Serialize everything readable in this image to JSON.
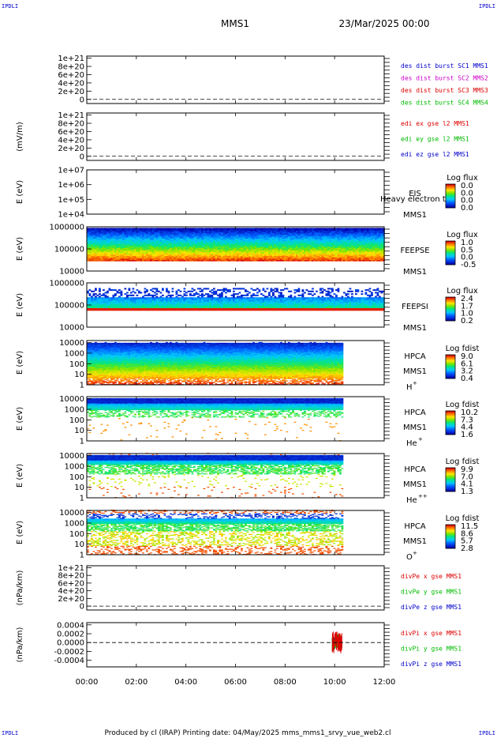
{
  "header": {
    "spacecraft": "MMS1",
    "date": "23/Mar/2025 00:00",
    "corner_tl": "IPDLI",
    "corner_tr": "IPDLI",
    "corner_bl": "IPDLI",
    "corner_br": "IPDLI"
  },
  "footer": {
    "text": "Produced by cl (IRAP)   Printing date: 04/May/2025   mms_mms1_srvy_vue_web2.cl"
  },
  "colors": {
    "red": "#dd0000",
    "green": "#00bb00",
    "blue": "#0000cc",
    "magenta": "#cc00cc",
    "frame": "#000000"
  },
  "chart_data": {
    "type": "multi-panel time series / spectrogram",
    "x_axis": {
      "ticks": [
        "00:00",
        "02:00",
        "04:00",
        "06:00",
        "08:00",
        "10:00",
        "12:00"
      ],
      "range_hours": [
        0,
        12
      ]
    },
    "panels": [
      {
        "id": "des-dist",
        "kind": "line",
        "ylabel": "",
        "yticks": [
          "1e+21",
          "8e+20",
          "6e+20",
          "4e+20",
          "2e+20",
          "0"
        ],
        "ytick_values": [
          1e+21,
          8e+20,
          6e+20,
          4e+20,
          2e+20,
          0
        ],
        "ylim": [
          -1e+20,
          1.05e+21
        ],
        "zero_line": true,
        "legend": [
          {
            "text": "des dist burst SC1 MMS1",
            "color": "blue"
          },
          {
            "text": "des dist burst SC2 MMS2",
            "color": "magenta"
          },
          {
            "text": "des dist burst SC3 MMS3",
            "color": "red"
          },
          {
            "text": "des dist burst SC4 MMS4",
            "color": "green"
          }
        ]
      },
      {
        "id": "edi",
        "kind": "line",
        "ylabel": "(mV/m)",
        "yticks": [
          "1e+21",
          "8e+20",
          "6e+20",
          "4e+20",
          "2e+20",
          "0"
        ],
        "ytick_values": [
          1e+21,
          8e+20,
          6e+20,
          4e+20,
          2e+20,
          0
        ],
        "ylim": [
          -1e+20,
          1.05e+21
        ],
        "zero_line": true,
        "legend": [
          {
            "text": "edi ex gse l2 MMS1",
            "color": "red"
          },
          {
            "text": "edi ey gse l2 MMS1",
            "color": "green"
          },
          {
            "text": "edi ez gse l2 MMS1",
            "color": "blue"
          }
        ]
      },
      {
        "id": "eis",
        "kind": "spectrogram",
        "ylabel": "E (eV)",
        "yticks": [
          "1e+07",
          "1e+06",
          "1e+05",
          "1e+04"
        ],
        "ytick_values": [
          10000000.0,
          1000000.0,
          100000.0,
          10000.0
        ],
        "ylog": [
          4,
          7
        ],
        "instrument": [
          "EIS",
          "MMS1"
        ],
        "overlay": "Heavy electron to",
        "colorbar": {
          "title": "Log flux",
          "ticks": [
            "0.0",
            "0.0",
            "0.0",
            "0.0"
          ]
        },
        "data_end_hours": 0
      },
      {
        "id": "feepse",
        "kind": "spectrogram",
        "ylabel": "E (eV)",
        "yticks": [
          "1000000",
          "100000",
          "10000"
        ],
        "ytick_values": [
          1000000.0,
          100000.0,
          10000.0
        ],
        "ylog": [
          4,
          6
        ],
        "instrument": [
          "FEEPSE",
          "MMS1"
        ],
        "colorbar": {
          "title": "Log flux",
          "ticks": [
            "1.0",
            "0.5",
            "0.0",
            "-0.5"
          ]
        },
        "data_end_hours": 12,
        "band_log": [
          4.45,
          5.92
        ],
        "style": "gradient_high_blue"
      },
      {
        "id": "feepsi",
        "kind": "spectrogram",
        "ylabel": "E (eV)",
        "yticks": [
          "1000000",
          "100000",
          "10000"
        ],
        "ytick_values": [
          1000000.0,
          100000.0,
          10000.0
        ],
        "ylog": [
          4,
          6
        ],
        "instrument": [
          "FEEPSI",
          "MMS1"
        ],
        "colorbar": {
          "title": "Log flux",
          "ticks": [
            "2.4",
            "1.7",
            "1.0",
            "0.2"
          ]
        },
        "data_end_hours": 12,
        "band_log": [
          4.75,
          5.3
        ],
        "style": "low_red_sparse_blue"
      },
      {
        "id": "hpca-h",
        "kind": "spectrogram",
        "ylabel": "E (eV)",
        "yticks": [
          "10000",
          "1000",
          "100",
          "10",
          "1"
        ],
        "ytick_values": [
          10000.0,
          1000.0,
          100.0,
          10,
          1
        ],
        "ylog": [
          0,
          4.2
        ],
        "instrument": [
          "HPCA",
          "MMS1"
        ],
        "species": "H",
        "species_sup": "+",
        "colorbar": {
          "title": "Log fdist",
          "ticks": [
            "9.0",
            "6.1",
            "3.2",
            "0.4"
          ]
        },
        "data_end_hours": 10.3,
        "style": "hpca_h"
      },
      {
        "id": "hpca-he",
        "kind": "spectrogram",
        "ylabel": "E (eV)",
        "yticks": [
          "10000",
          "1000",
          "100",
          "10",
          "1"
        ],
        "ytick_values": [
          10000.0,
          1000.0,
          100.0,
          10,
          1
        ],
        "ylog": [
          0,
          4.2
        ],
        "instrument": [
          "HPCA",
          "MMS1"
        ],
        "species": "He",
        "species_sup": "+",
        "colorbar": {
          "title": "Log fdist",
          "ticks": [
            "10.2",
            "7.3",
            "4.4",
            "1.6"
          ]
        },
        "data_end_hours": 10.3,
        "style": "hpca_he"
      },
      {
        "id": "hpca-hepp",
        "kind": "spectrogram",
        "ylabel": "E (eV)",
        "yticks": [
          "10000",
          "1000",
          "100",
          "10",
          "1"
        ],
        "ytick_values": [
          10000.0,
          1000.0,
          100.0,
          10,
          1
        ],
        "ylog": [
          0,
          4.2
        ],
        "instrument": [
          "HPCA",
          "MMS1"
        ],
        "species": "He",
        "species_sup": "++",
        "colorbar": {
          "title": "Log fdist",
          "ticks": [
            "9.9",
            "7.0",
            "4.1",
            "1.3"
          ]
        },
        "data_end_hours": 10.3,
        "style": "hpca_hepp"
      },
      {
        "id": "hpca-o",
        "kind": "spectrogram",
        "ylabel": "E (eV)",
        "yticks": [
          "10000",
          "1000",
          "100",
          "10",
          "1"
        ],
        "ytick_values": [
          10000.0,
          1000.0,
          100.0,
          10,
          1
        ],
        "ylog": [
          0,
          4.2
        ],
        "instrument": [
          "HPCA",
          "MMS1"
        ],
        "species": "O",
        "species_sup": "+",
        "colorbar": {
          "title": "Log fdist",
          "ticks": [
            "11.5",
            "8.6",
            "5.7",
            "2.8"
          ]
        },
        "data_end_hours": 10.3,
        "style": "hpca_o"
      },
      {
        "id": "divpe",
        "kind": "line",
        "ylabel": "(nPa/km)",
        "yticks": [
          "1e+21",
          "8e+20",
          "6e+20",
          "4e+20",
          "2e+20",
          "0"
        ],
        "ytick_values": [
          1e+21,
          8e+20,
          6e+20,
          4e+20,
          2e+20,
          0
        ],
        "ylim": [
          -1e+20,
          1.05e+21
        ],
        "zero_line": true,
        "legend": [
          {
            "text": "divPe x gse MMS1",
            "color": "red"
          },
          {
            "text": "divPe y gse MMS1",
            "color": "green"
          },
          {
            "text": "divPe z gse MMS1",
            "color": "blue"
          }
        ]
      },
      {
        "id": "divpi",
        "kind": "line",
        "ylabel": "(nPa/km)",
        "yticks": [
          "0.0004",
          "0.0002",
          "0.0000",
          "-0.0002",
          "-0.0004"
        ],
        "ytick_values": [
          0.0004,
          0.0002,
          0,
          -0.0002,
          -0.0004
        ],
        "ylim": [
          -0.00055,
          0.00045
        ],
        "zero_line": true,
        "burst": {
          "start_hours": 9.9,
          "end_hours": 10.3,
          "amplitude": 0.00025
        },
        "legend": [
          {
            "text": "divPi x gse MMS1",
            "color": "red"
          },
          {
            "text": "divPi y gse MMS1",
            "color": "green"
          },
          {
            "text": "divPi z gse MMS1",
            "color": "blue"
          }
        ]
      }
    ]
  }
}
